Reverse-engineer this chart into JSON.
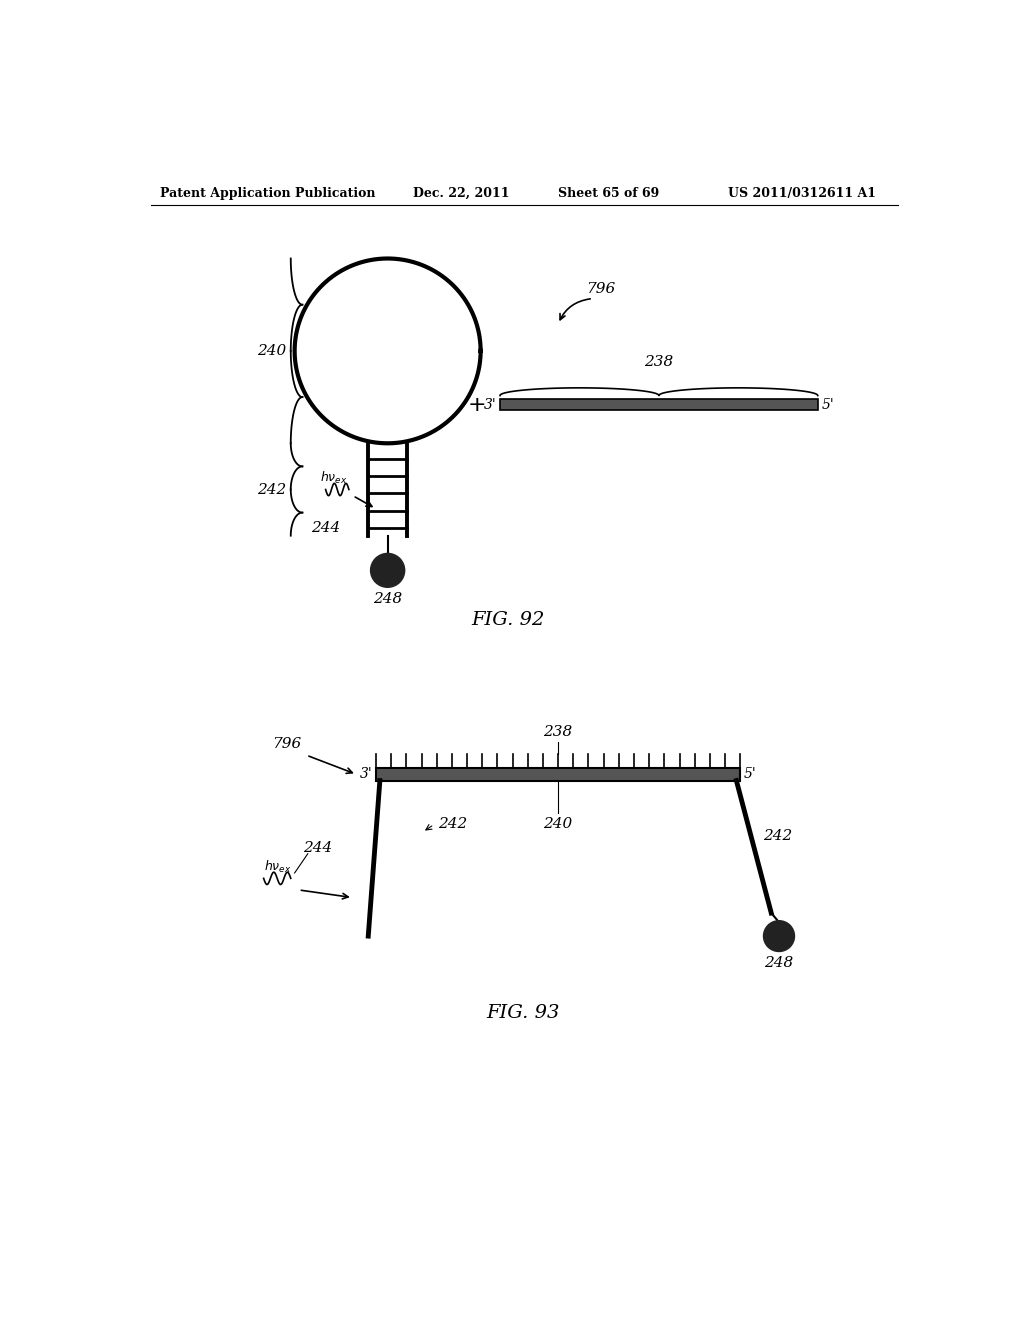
{
  "background_color": "#ffffff",
  "header_text": "Patent Application Publication",
  "header_date": "Dec. 22, 2011",
  "header_sheet": "Sheet 65 of 69",
  "header_patent": "US 2011/0312611 A1",
  "fig92_title": "FIG. 92",
  "fig93_title": "FIG. 93"
}
